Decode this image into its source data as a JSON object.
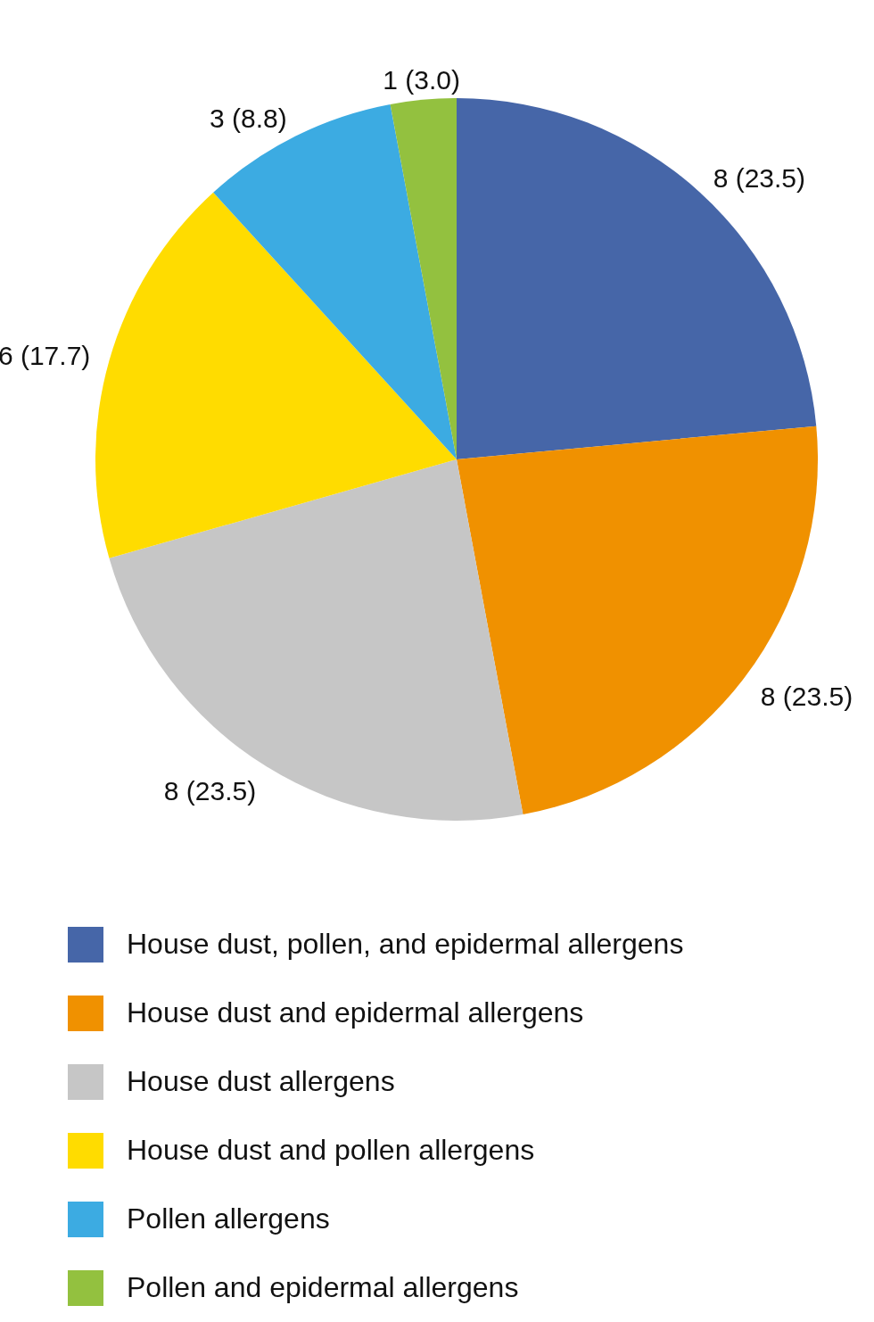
{
  "chart_data": {
    "type": "pie",
    "categories": [
      "House dust, pollen, and epidermal allergens",
      "House dust and epidermal allergens",
      "House dust allergens",
      "House dust and pollen allergens",
      "Pollen allergens",
      "Pollen and epidermal allergens"
    ],
    "values": [
      8,
      8,
      8,
      6,
      3,
      1
    ],
    "colors": [
      "#4666a8",
      "#f09100",
      "#c6c6c6",
      "#ffdc00",
      "#3cabe2",
      "#93c13f"
    ],
    "value_labels": [
      "8 (23.5)",
      "8 (23.5)",
      "8 (23.5)",
      "6 (17.7)",
      "3 (8.8)",
      "1 (3.0)"
    ],
    "legend": "bottom"
  }
}
